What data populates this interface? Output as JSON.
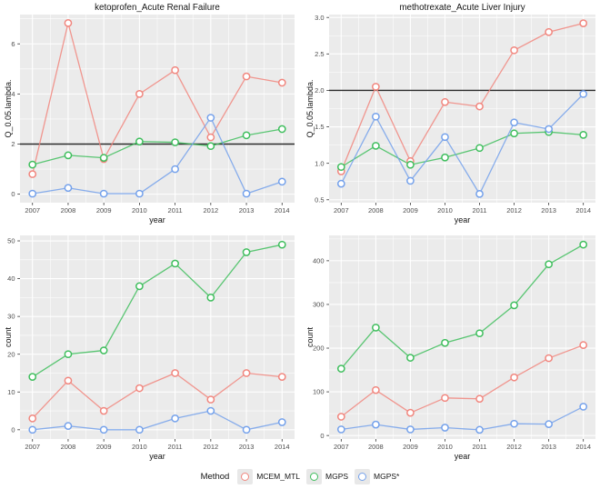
{
  "figure": {
    "background": "#FFFFFF"
  },
  "palette": {
    "panel_bg": "#EBEBEB",
    "gridline": "#FFFFFF",
    "tick_text": "#4D4D4D",
    "axis_text": "#141414",
    "title_text": "#141414",
    "ref_line": "#2B2B2B",
    "marker_fill": "#FFFFFF",
    "legend_key_bg": "#E8E8E8",
    "mcem_mtl": "#F1867E",
    "mgps": "#3FBE5D",
    "mgps_star": "#74A1EB"
  },
  "legend": {
    "title": "Method",
    "items": [
      {
        "label": "MCEM_MTL",
        "color": "#F1867E"
      },
      {
        "label": "MGPS",
        "color": "#3FBE5D"
      },
      {
        "label": "MGPS*",
        "color": "#74A1EB"
      }
    ]
  },
  "chart_data": [
    {
      "type": "line",
      "title": "ketoprofen_Acute Renal Failure",
      "xlabel": "year",
      "ylabel": "Q_0.05.lambda.",
      "x": [
        2007,
        2008,
        2009,
        2010,
        2011,
        2012,
        2013,
        2014
      ],
      "xtick_labels": [
        "2007",
        "2008",
        "2009",
        "2010",
        "2011",
        "2012",
        "2013",
        "2014"
      ],
      "xlim": [
        2006.65,
        2014.35
      ],
      "yticks": [
        0,
        2,
        4,
        6
      ],
      "ytick_labels": [
        "0",
        "2",
        "4",
        "6"
      ],
      "ylim": [
        -0.34,
        7.17
      ],
      "ref_line": 2,
      "grid": true,
      "series": [
        {
          "name": "MCEM_MTL",
          "color": "#F1867E",
          "values": [
            0.8,
            6.83,
            1.4,
            4.0,
            4.95,
            2.27,
            4.7,
            4.45
          ]
        },
        {
          "name": "MGPS",
          "color": "#3FBE5D",
          "values": [
            1.18,
            1.55,
            1.45,
            2.1,
            2.07,
            1.92,
            2.35,
            2.6
          ]
        },
        {
          "name": "MGPS*",
          "color": "#74A1EB",
          "values": [
            0.02,
            0.25,
            0.02,
            0.02,
            1.0,
            3.05,
            0.02,
            0.5
          ]
        }
      ]
    },
    {
      "type": "line",
      "title": "methotrexate_Acute Liver Injury",
      "xlabel": "year",
      "ylabel": "Q_0.05.lambda.",
      "x": [
        2007,
        2008,
        2009,
        2010,
        2011,
        2012,
        2013,
        2014
      ],
      "xtick_labels": [
        "2007",
        "2008",
        "2009",
        "2010",
        "2011",
        "2012",
        "2013",
        "2014"
      ],
      "xlim": [
        2006.65,
        2014.35
      ],
      "yticks": [
        0.5,
        1.0,
        1.5,
        2.0,
        2.5,
        3.0
      ],
      "ytick_labels": [
        "0.5",
        "1.0",
        "1.5",
        "2.0",
        "2.5",
        "3.0"
      ],
      "ylim": [
        0.46,
        3.04
      ],
      "ref_line": 2,
      "grid": true,
      "series": [
        {
          "name": "MCEM_MTL",
          "color": "#F1867E",
          "values": [
            0.89,
            2.05,
            1.03,
            1.84,
            1.78,
            2.55,
            2.8,
            2.92
          ]
        },
        {
          "name": "MGPS",
          "color": "#3FBE5D",
          "values": [
            0.95,
            1.24,
            0.98,
            1.08,
            1.21,
            1.41,
            1.43,
            1.39
          ]
        },
        {
          "name": "MGPS*",
          "color": "#74A1EB",
          "values": [
            0.72,
            1.64,
            0.76,
            1.36,
            0.58,
            1.56,
            1.47,
            1.95
          ]
        }
      ]
    },
    {
      "type": "line",
      "title": "",
      "xlabel": "year",
      "ylabel": "count",
      "x": [
        2007,
        2008,
        2009,
        2010,
        2011,
        2012,
        2013,
        2014
      ],
      "xtick_labels": [
        "2007",
        "2008",
        "2009",
        "2010",
        "2011",
        "2012",
        "2013",
        "2014"
      ],
      "xlim": [
        2006.65,
        2014.35
      ],
      "yticks": [
        0,
        10,
        20,
        30,
        40,
        50
      ],
      "ytick_labels": [
        "0",
        "10",
        "20",
        "30",
        "40",
        "50"
      ],
      "ylim": [
        -2.45,
        51.45
      ],
      "ref_line": null,
      "grid": true,
      "series": [
        {
          "name": "MCEM_MTL",
          "color": "#F1867E",
          "values": [
            3,
            13,
            5,
            11,
            15,
            8,
            15,
            14
          ]
        },
        {
          "name": "MGPS",
          "color": "#3FBE5D",
          "values": [
            14,
            20,
            21,
            38,
            44,
            35,
            47,
            49
          ]
        },
        {
          "name": "MGPS*",
          "color": "#74A1EB",
          "values": [
            0,
            1,
            0,
            0,
            3,
            5,
            0,
            2
          ]
        }
      ]
    },
    {
      "type": "line",
      "title": "",
      "xlabel": "year",
      "ylabel": "count",
      "x": [
        2007,
        2008,
        2009,
        2010,
        2011,
        2012,
        2013,
        2014
      ],
      "xtick_labels": [
        "2007",
        "2008",
        "2009",
        "2010",
        "2011",
        "2012",
        "2013",
        "2014"
      ],
      "xlim": [
        2006.65,
        2014.35
      ],
      "yticks": [
        0,
        100,
        200,
        300,
        400
      ],
      "ytick_labels": [
        "0",
        "100",
        "200",
        "300",
        "400"
      ],
      "ylim": [
        -8,
        458
      ],
      "ref_line": null,
      "grid": true,
      "series": [
        {
          "name": "MCEM_MTL",
          "color": "#F1867E",
          "values": [
            43,
            104,
            52,
            86,
            84,
            133,
            177,
            207
          ]
        },
        {
          "name": "MGPS",
          "color": "#3FBE5D",
          "values": [
            153,
            247,
            178,
            212,
            234,
            298,
            392,
            437
          ]
        },
        {
          "name": "MGPS*",
          "color": "#74A1EB",
          "values": [
            14,
            25,
            14,
            18,
            13,
            27,
            26,
            66
          ]
        }
      ]
    }
  ]
}
